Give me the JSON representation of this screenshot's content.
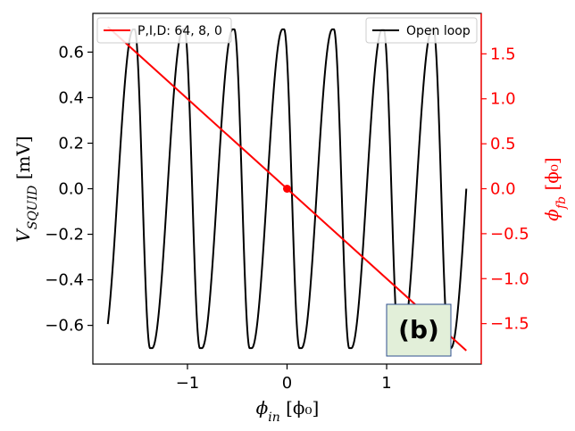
{
  "chart_data": {
    "type": "line",
    "title": "",
    "xlabel": "ϕin [ϕ0]",
    "ylabel_left": "VSQUID [mV]",
    "ylabel_right": "ϕfb [ϕ0]",
    "xlim": [
      -1.95,
      1.95
    ],
    "ylim_left": [
      -0.77,
      0.77
    ],
    "ylim_right": [
      -1.95,
      1.95
    ],
    "x_ticks": [
      -1,
      0,
      1
    ],
    "x_tick_labels": [
      "−1",
      "0",
      "1"
    ],
    "y_left_ticks": [
      -0.6,
      -0.4,
      -0.2,
      0.0,
      0.2,
      0.4,
      0.6
    ],
    "y_left_tick_labels": [
      "−0.6",
      "−0.4",
      "−0.2",
      "0.0",
      "0.2",
      "0.4",
      "0.6"
    ],
    "y_right_ticks": [
      -1.5,
      -1.0,
      -0.5,
      0.0,
      0.5,
      1.0,
      1.5
    ],
    "y_right_tick_labels": [
      "−1.5",
      "−1.0",
      "−0.5",
      "0.0",
      "0.5",
      "1.0",
      "1.5"
    ],
    "grid": false,
    "series": [
      {
        "name": "Open loop",
        "axis": "left",
        "style": "line",
        "color": "#000000",
        "model": "skewed-sine",
        "amplitude": 0.7,
        "period": 0.5,
        "x_range": [
          -1.8,
          1.8
        ]
      },
      {
        "name": "P,I,D: 64, 8, 0",
        "axis": "right",
        "style": "line",
        "color": "#ff0000",
        "x": [
          -1.8,
          1.8
        ],
        "y": [
          1.8,
          -1.8
        ]
      }
    ],
    "markers": [
      {
        "axis": "right",
        "x": 0.0,
        "y": 0.0,
        "color": "#ff0000"
      }
    ],
    "legends": [
      {
        "position": "top-left",
        "entries": [
          "P,I,D: 64, 8, 0"
        ]
      },
      {
        "position": "top-right",
        "entries": [
          "Open loop"
        ]
      }
    ],
    "annotations": [
      {
        "text": "(b)",
        "position": "bottom-right",
        "background": "#e2efd9",
        "border": "#2f4f8f"
      }
    ]
  },
  "colors": {
    "open_loop": "#000000",
    "closed_loop": "#ff0000",
    "right_axis": "#ff0000",
    "badge_fill": "#e2efd9",
    "badge_border": "#2f4f8f"
  }
}
